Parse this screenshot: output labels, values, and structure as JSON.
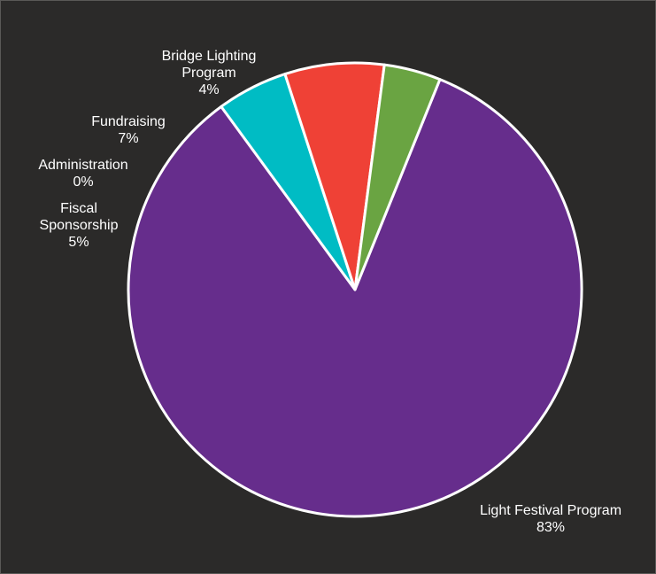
{
  "chart_data": {
    "type": "pie",
    "title": "",
    "slices": [
      {
        "name": "Light Festival Program",
        "value": 83,
        "percent_label": "83%",
        "color": "#662d8c"
      },
      {
        "name": "Fiscal Sponsorship",
        "value": 5,
        "percent_label": "5%",
        "color": "#00bcc4"
      },
      {
        "name": "Administration",
        "value": 0,
        "percent_label": "0%",
        "color": "#f0a020"
      },
      {
        "name": "Fundraising",
        "value": 7,
        "percent_label": "7%",
        "color": "#ef4136"
      },
      {
        "name": "Bridge Lighting Program",
        "value": 4,
        "percent_label": "4%",
        "color": "#6aa442"
      }
    ],
    "labels": {
      "light_festival": {
        "line1": "Light Festival Program",
        "line2": "83%"
      },
      "fiscal": {
        "line1": "Fiscal",
        "line2": "Sponsorship",
        "line3": "5%"
      },
      "administration": {
        "line1": "Administration",
        "line2": "0%"
      },
      "fundraising": {
        "line1": "Fundraising",
        "line2": "7%"
      },
      "bridge": {
        "line1": "Bridge Lighting",
        "line2": "Program",
        "line3": "4%"
      }
    },
    "slice_border_color": "#ffffff",
    "background_color": "#2b2a29"
  }
}
